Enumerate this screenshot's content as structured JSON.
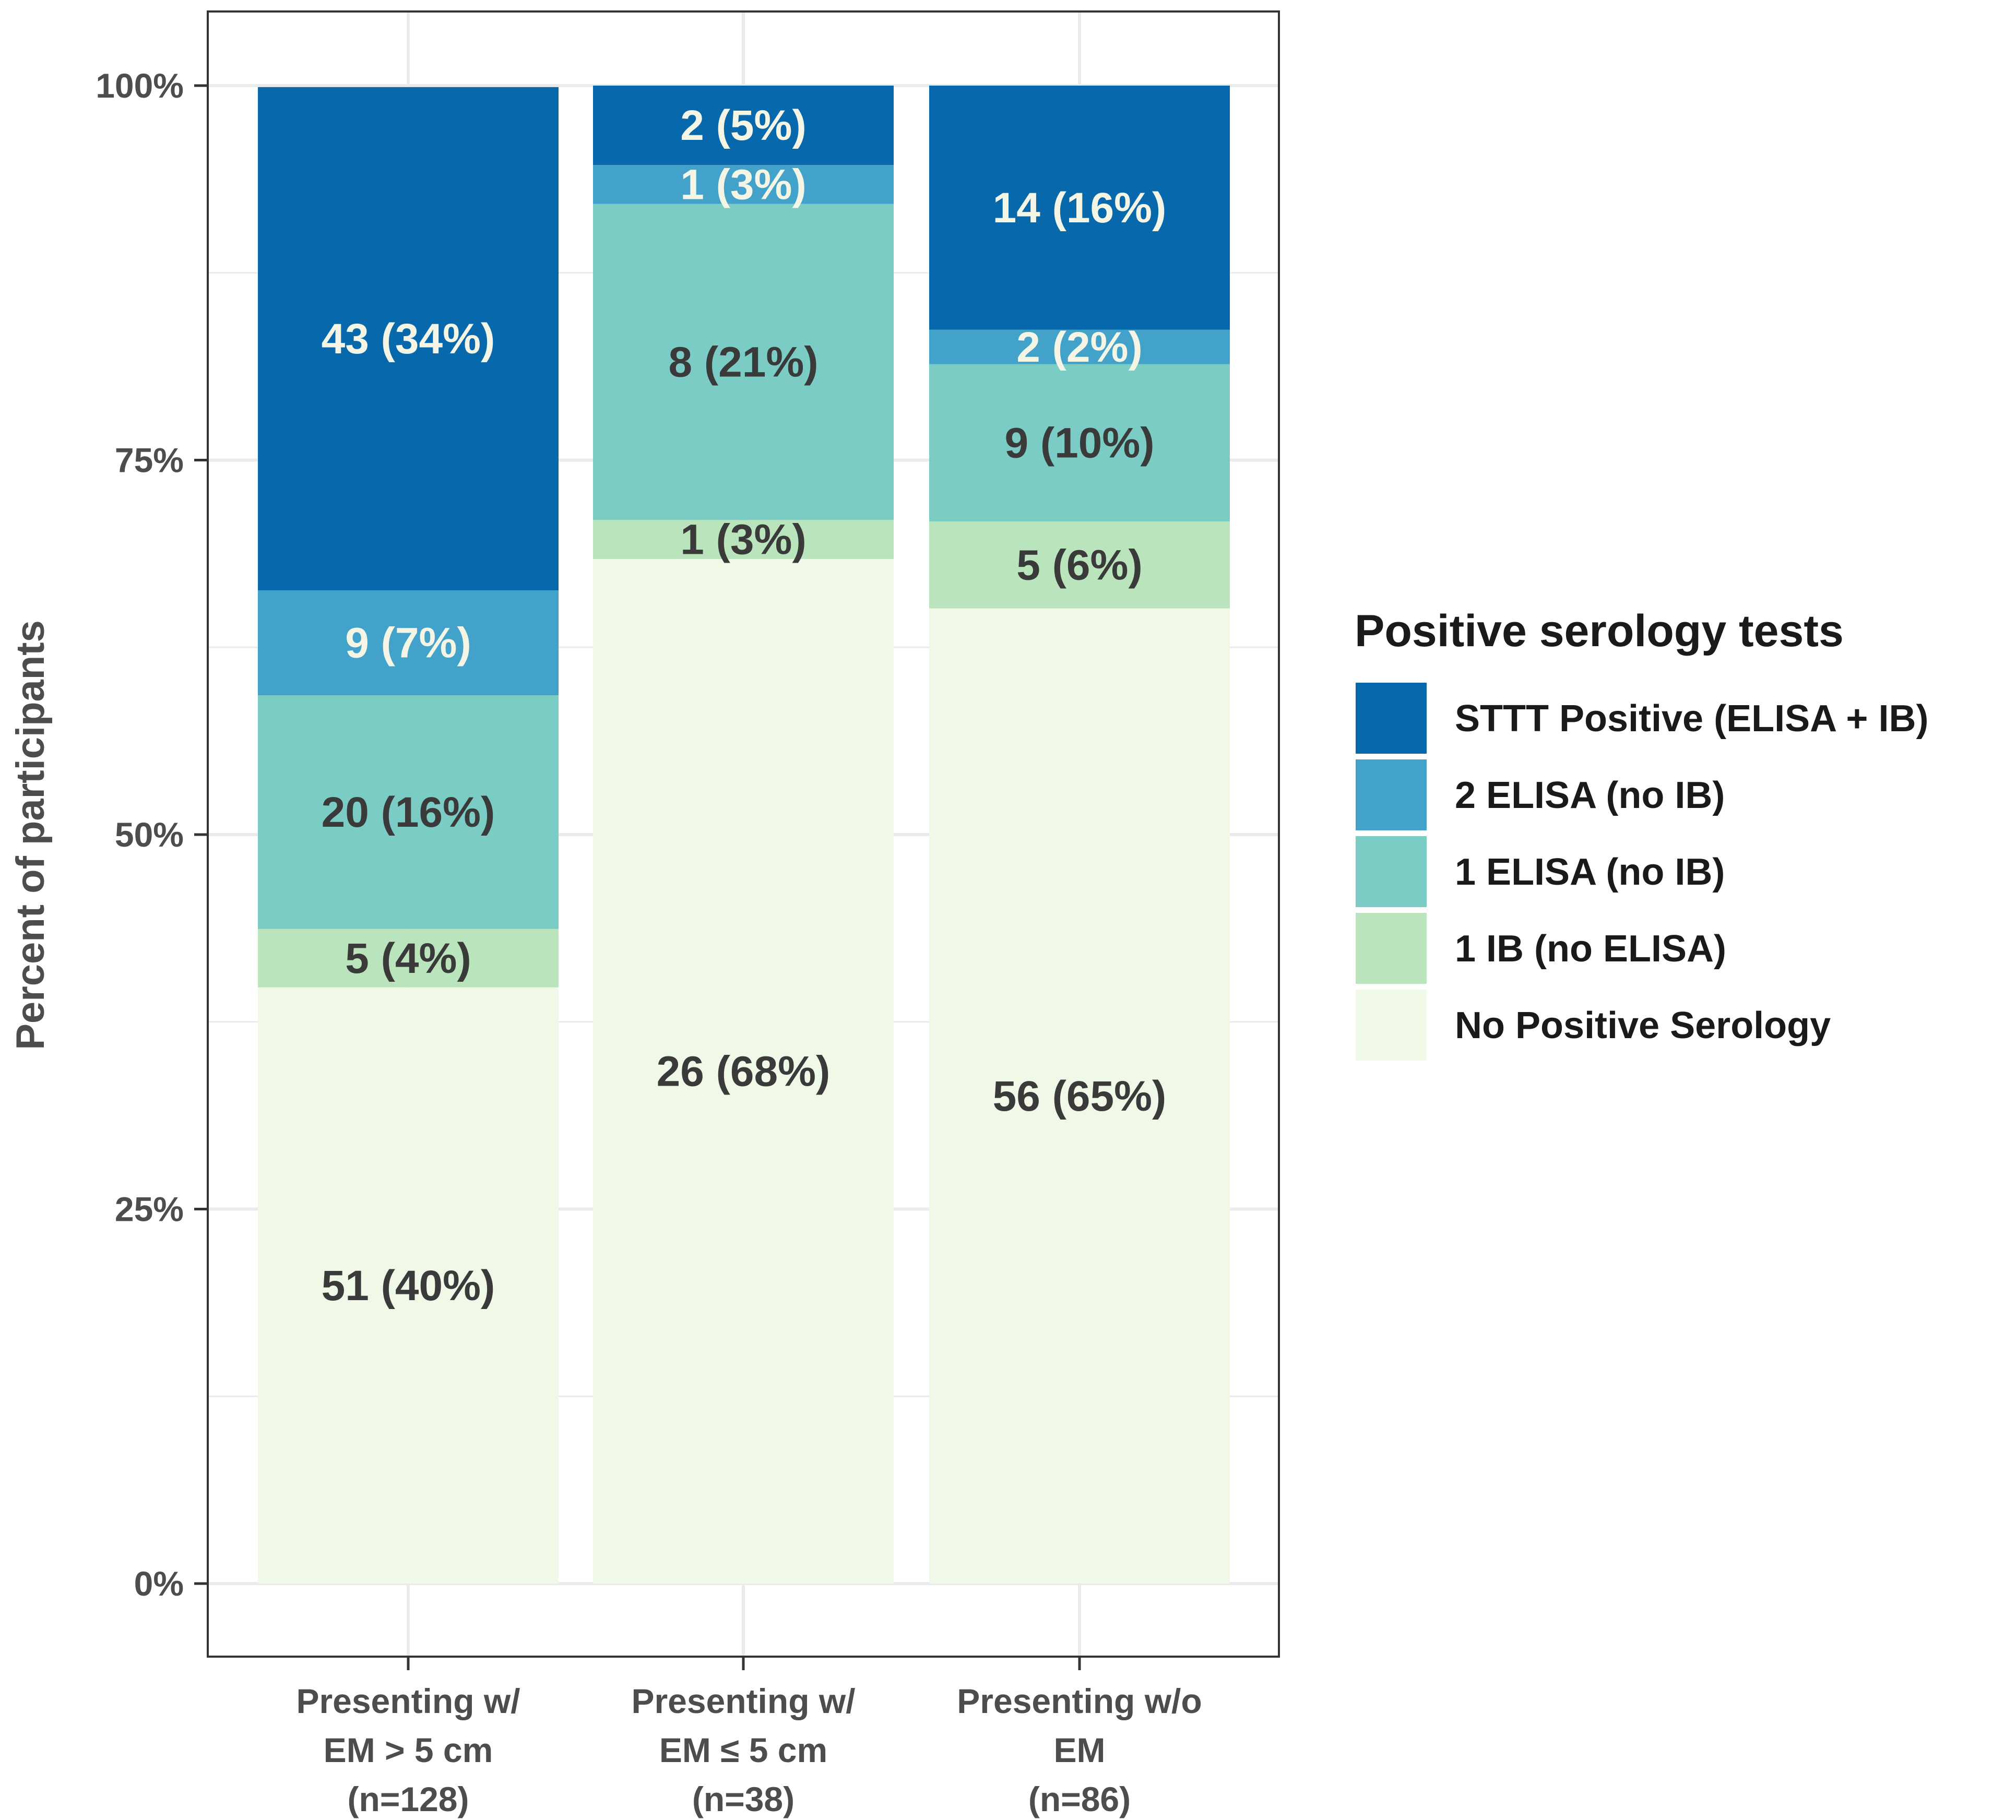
{
  "chart_data": {
    "type": "bar",
    "stacked": true,
    "ylabel": "Percent of participants",
    "xlabel": "",
    "ylim": [
      0,
      100
    ],
    "y_ticks": [
      "0%",
      "25%",
      "50%",
      "75%",
      "100%"
    ],
    "y_tick_values": [
      0,
      25,
      50,
      75,
      100
    ],
    "grid": true,
    "legend_position": "right",
    "categories": [
      [
        "Presenting w/",
        "EM > 5 cm",
        "(n=128)"
      ],
      [
        "Presenting w/",
        "EM ≤ 5 cm",
        "(n=38)"
      ],
      [
        "Presenting w/o",
        "EM",
        "(n=86)"
      ]
    ],
    "legend": {
      "title": "Positive serology tests",
      "entries": [
        "STTT Positive (ELISA + IB)",
        "2 ELISA (no IB)",
        "1 ELISA (no IB)",
        "1 IB (no ELISA)",
        "No Positive Serology"
      ]
    },
    "series": [
      {
        "name": "No Positive Serology",
        "color": "#f0f9e8",
        "label_color": "#3a3a3a",
        "values": [
          39.8,
          68.4,
          65.1
        ],
        "labels": [
          "51 (40%)",
          "26 (68%)",
          "56 (65%)"
        ]
      },
      {
        "name": "1 IB (no ELISA)",
        "color": "#bae4bc",
        "label_color": "#3a3a3a",
        "values": [
          3.9,
          2.6,
          5.8
        ],
        "labels": [
          "5 (4%)",
          "1 (3%)",
          "5 (6%)"
        ]
      },
      {
        "name": "1 ELISA (no IB)",
        "color": "#7bccc4",
        "label_color": "#3a3a3a",
        "values": [
          15.6,
          21.1,
          10.5
        ],
        "labels": [
          "20 (16%)",
          "8 (21%)",
          "9 (10%)"
        ]
      },
      {
        "name": "2 ELISA (no IB)",
        "color": "#43a2ca",
        "label_color": "#f5f5e6",
        "values": [
          7.0,
          2.6,
          2.3
        ],
        "labels": [
          "9 (7%)",
          "1 (3%)",
          "2 (2%)"
        ]
      },
      {
        "name": "STTT Positive (ELISA + IB)",
        "color": "#0868ac",
        "label_color": "#f5f5e6",
        "values": [
          33.6,
          5.3,
          16.3
        ],
        "labels": [
          "43 (34%)",
          "2 (5%)",
          "14 (16%)"
        ]
      }
    ]
  },
  "colors": {
    "panel_border": "#333333",
    "grid": "#ebebeb",
    "axis_text": "#4d4d4d"
  }
}
